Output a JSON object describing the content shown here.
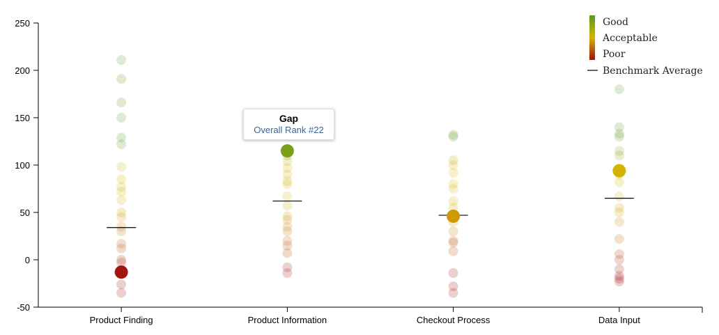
{
  "chart_data": {
    "type": "scatter",
    "title": "",
    "xlabel": "",
    "ylabel": "",
    "ylim": [
      -50,
      250
    ],
    "yticks": [
      250,
      200,
      150,
      100,
      50,
      0,
      -50
    ],
    "categories": [
      "Product Finding",
      "Product Information",
      "Checkout Process",
      "Data Input"
    ],
    "series": [
      {
        "name": "Product Finding",
        "values": [
          211,
          191,
          166,
          150,
          129,
          122,
          98,
          85,
          77,
          72,
          63,
          50,
          45,
          35,
          30,
          17,
          12,
          0,
          -3,
          -26,
          -35
        ],
        "highlight": -13,
        "benchmark": 34
      },
      {
        "name": "Product Information",
        "values": [
          110,
          104,
          97,
          90,
          83,
          80,
          67,
          57,
          46,
          42,
          35,
          30,
          20,
          15,
          7,
          -8,
          -14
        ],
        "highlight": 115,
        "benchmark": 62
      },
      {
        "name": "Checkout Process",
        "values": [
          132,
          130,
          105,
          100,
          92,
          80,
          75,
          62,
          55,
          40,
          30,
          20,
          18,
          9,
          -14,
          -28,
          -35
        ],
        "highlight": 46,
        "benchmark": 47
      },
      {
        "name": "Data Input",
        "values": [
          180,
          140,
          133,
          130,
          115,
          110,
          90,
          82,
          67,
          55,
          50,
          40,
          22,
          6,
          0,
          -10,
          -17,
          -20,
          -23
        ],
        "highlight": 94,
        "benchmark": 65
      }
    ],
    "legend": {
      "good": "Good",
      "acceptable": "Acceptable",
      "poor": "Poor",
      "benchmark": "Benchmark Average",
      "placement": "top-right"
    },
    "colors": {
      "good": "#5a9a1e",
      "acceptable": "#d4b400",
      "mid": "#c8860a",
      "poor": "#a01010"
    }
  },
  "tooltip": {
    "title": "Gap",
    "subtitle": "Overall Rank #22"
  }
}
